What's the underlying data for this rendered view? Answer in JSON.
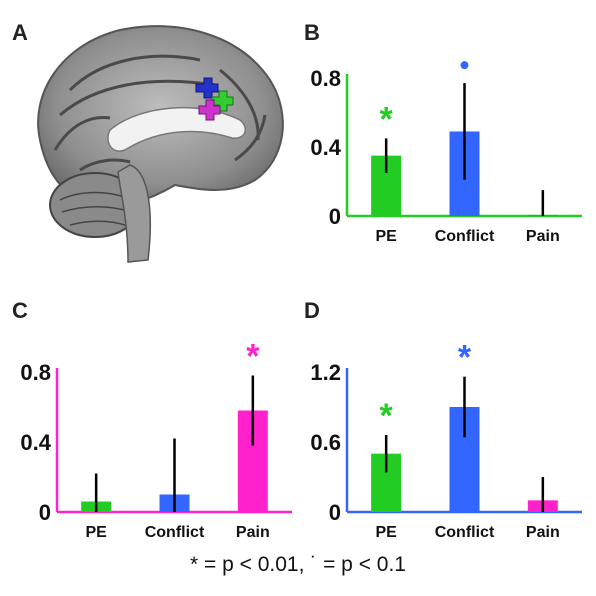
{
  "panels": {
    "a": "A",
    "b": "B",
    "c": "C",
    "d": "D"
  },
  "colors": {
    "pe": "#22cc22",
    "conflict": "#3366ff",
    "pain": "#ff22cc"
  },
  "footnote": "* = p < 0.01, ˙ = p < 0.1",
  "chart_data": [
    {
      "panel": "B",
      "type": "bar",
      "categories": [
        "PE",
        "Conflict",
        "Pain"
      ],
      "values": [
        0.35,
        0.49,
        0.0
      ],
      "errors": [
        0.1,
        0.28,
        0.15
      ],
      "colors": [
        "#22cc22",
        "#3366ff",
        "#ff22cc"
      ],
      "axis_color": "#22cc22",
      "ylim": [
        0,
        0.8
      ],
      "yticks": [
        "0",
        "0.4",
        "0.8"
      ],
      "ytick_values": [
        0,
        0.4,
        0.8
      ],
      "markers": [
        {
          "category": "PE",
          "symbol": "*",
          "color": "#22cc22"
        },
        {
          "category": "Conflict",
          "symbol": "•",
          "color": "#3366ff"
        }
      ]
    },
    {
      "panel": "C",
      "type": "bar",
      "categories": [
        "PE",
        "Conflict",
        "Pain"
      ],
      "values": [
        0.06,
        0.1,
        0.58
      ],
      "errors": [
        0.16,
        0.32,
        0.2
      ],
      "colors": [
        "#22cc22",
        "#3366ff",
        "#ff22cc"
      ],
      "axis_color": "#ff22cc",
      "ylim": [
        0,
        0.8
      ],
      "yticks": [
        "0",
        "0.4",
        "0.8"
      ],
      "ytick_values": [
        0,
        0.4,
        0.8
      ],
      "markers": [
        {
          "category": "Pain",
          "symbol": "*",
          "color": "#ff22cc"
        }
      ]
    },
    {
      "panel": "D",
      "type": "bar",
      "categories": [
        "PE",
        "Conflict",
        "Pain"
      ],
      "values": [
        0.5,
        0.9,
        0.1
      ],
      "errors": [
        0.16,
        0.26,
        0.2
      ],
      "colors": [
        "#22cc22",
        "#3366ff",
        "#ff22cc"
      ],
      "axis_color": "#3366ff",
      "ylim": [
        0,
        1.2
      ],
      "yticks": [
        "0",
        "0.6",
        "1.2"
      ],
      "ytick_values": [
        0,
        0.6,
        1.2
      ],
      "markers": [
        {
          "category": "PE",
          "symbol": "*",
          "color": "#22cc22"
        },
        {
          "category": "Conflict",
          "symbol": "*",
          "color": "#3366ff"
        }
      ]
    }
  ]
}
